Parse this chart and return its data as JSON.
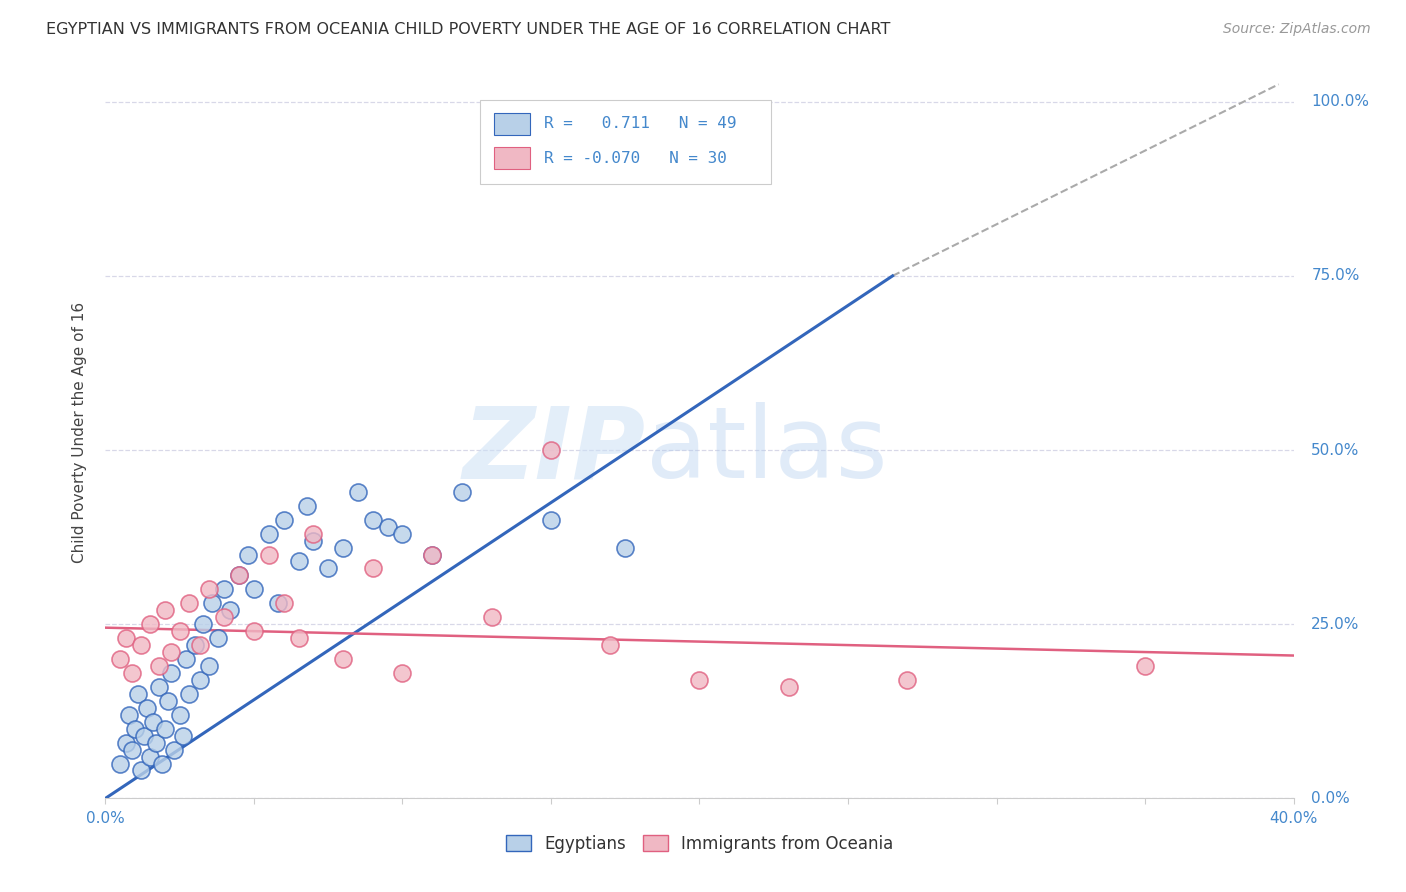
{
  "title": "EGYPTIAN VS IMMIGRANTS FROM OCEANIA CHILD POVERTY UNDER THE AGE OF 16 CORRELATION CHART",
  "source": "Source: ZipAtlas.com",
  "ylabel": "Child Poverty Under the Age of 16",
  "xlim": [
    0.0,
    0.4
  ],
  "ylim": [
    0.0,
    1.05
  ],
  "ytick_labels": [
    "0.0%",
    "25.0%",
    "50.0%",
    "75.0%",
    "100.0%"
  ],
  "ytick_values": [
    0.0,
    0.25,
    0.5,
    0.75,
    1.0
  ],
  "background_color": "#ffffff",
  "grid_color": "#d8d8e8",
  "egyptians_color": "#b8d0e8",
  "oceania_color": "#f0b8c4",
  "blue_line_color": "#3366bb",
  "pink_line_color": "#e06080",
  "dashed_line_color": "#aaaaaa",
  "axis_color": "#4488cc",
  "egyptians_x": [
    0.005,
    0.007,
    0.008,
    0.009,
    0.01,
    0.011,
    0.012,
    0.013,
    0.014,
    0.015,
    0.016,
    0.017,
    0.018,
    0.019,
    0.02,
    0.021,
    0.022,
    0.023,
    0.025,
    0.026,
    0.027,
    0.028,
    0.03,
    0.032,
    0.033,
    0.035,
    0.036,
    0.038,
    0.04,
    0.042,
    0.045,
    0.048,
    0.05,
    0.055,
    0.058,
    0.06,
    0.065,
    0.068,
    0.07,
    0.075,
    0.08,
    0.085,
    0.09,
    0.095,
    0.1,
    0.11,
    0.12,
    0.15,
    0.175
  ],
  "egyptians_y": [
    0.05,
    0.08,
    0.12,
    0.07,
    0.1,
    0.15,
    0.04,
    0.09,
    0.13,
    0.06,
    0.11,
    0.08,
    0.16,
    0.05,
    0.1,
    0.14,
    0.18,
    0.07,
    0.12,
    0.09,
    0.2,
    0.15,
    0.22,
    0.17,
    0.25,
    0.19,
    0.28,
    0.23,
    0.3,
    0.27,
    0.32,
    0.35,
    0.3,
    0.38,
    0.28,
    0.4,
    0.34,
    0.42,
    0.37,
    0.33,
    0.36,
    0.44,
    0.4,
    0.39,
    0.38,
    0.35,
    0.44,
    0.4,
    0.36
  ],
  "oceania_x": [
    0.005,
    0.007,
    0.009,
    0.012,
    0.015,
    0.018,
    0.02,
    0.022,
    0.025,
    0.028,
    0.032,
    0.035,
    0.04,
    0.045,
    0.05,
    0.055,
    0.06,
    0.065,
    0.07,
    0.08,
    0.09,
    0.1,
    0.11,
    0.13,
    0.15,
    0.17,
    0.2,
    0.23,
    0.27,
    0.35
  ],
  "oceania_y": [
    0.2,
    0.23,
    0.18,
    0.22,
    0.25,
    0.19,
    0.27,
    0.21,
    0.24,
    0.28,
    0.22,
    0.3,
    0.26,
    0.32,
    0.24,
    0.35,
    0.28,
    0.23,
    0.38,
    0.2,
    0.33,
    0.18,
    0.35,
    0.26,
    0.5,
    0.22,
    0.17,
    0.16,
    0.17,
    0.19
  ],
  "blue_line_x": [
    0.0,
    0.265
  ],
  "blue_line_y": [
    0.0,
    0.75
  ],
  "pink_line_x": [
    0.0,
    0.4
  ],
  "pink_line_y": [
    0.245,
    0.205
  ],
  "dashed_line_x": [
    0.265,
    0.395
  ],
  "dashed_line_y": [
    0.75,
    1.025
  ]
}
